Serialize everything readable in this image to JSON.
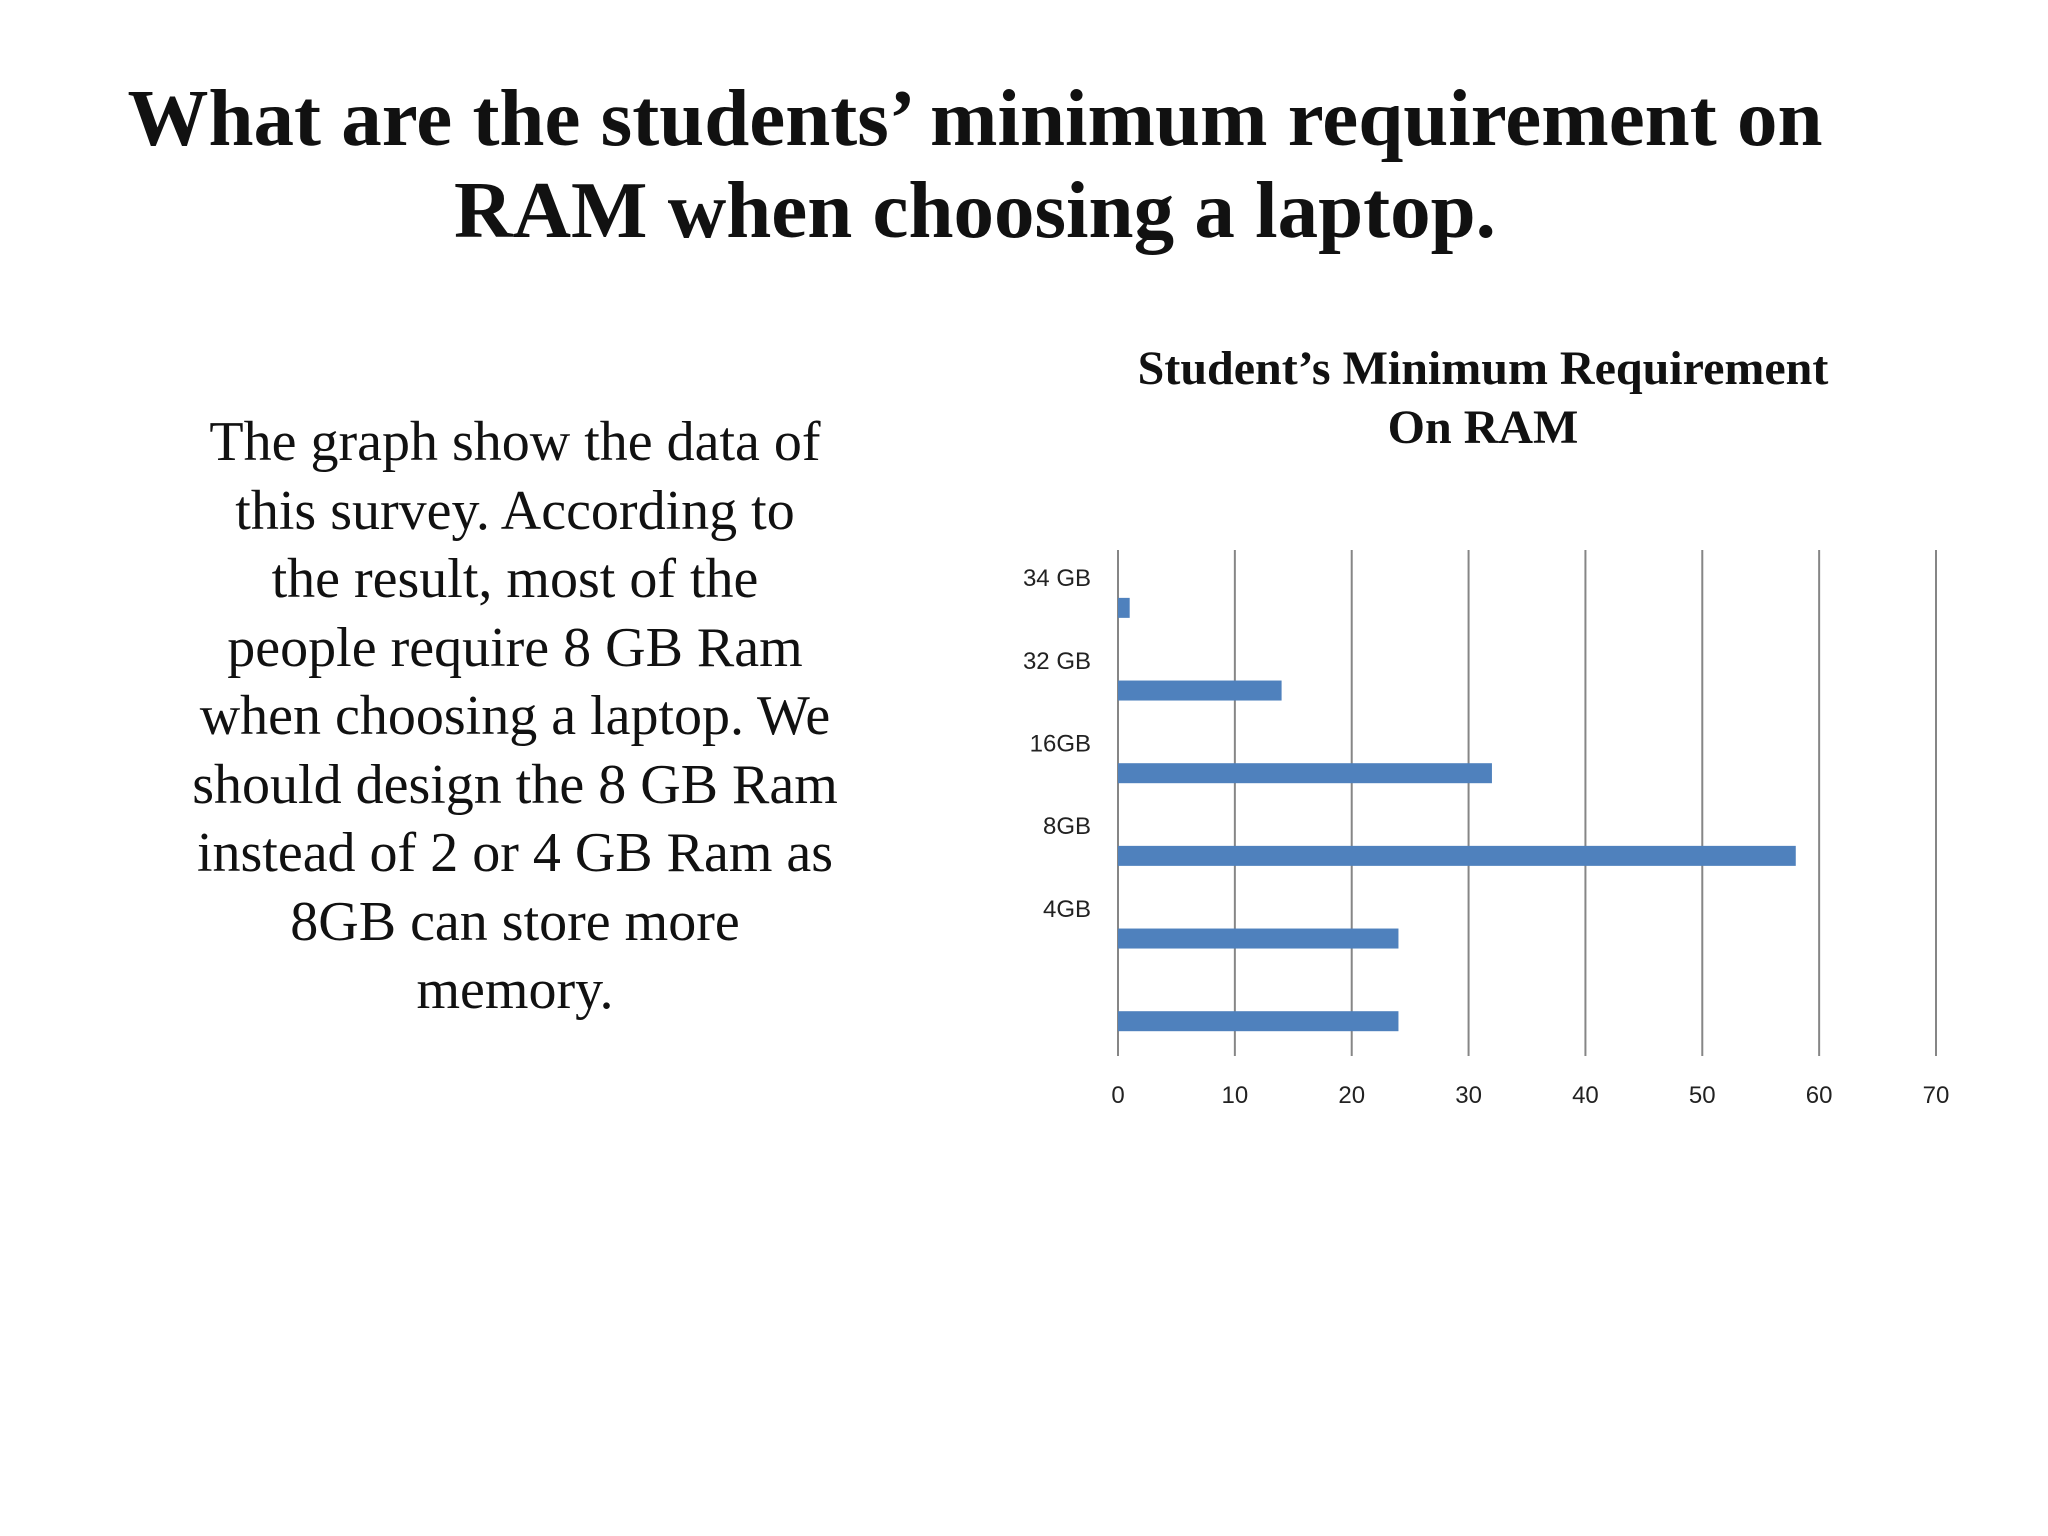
{
  "slide": {
    "title_lines": [
      "What are the students’ minimum requirement on",
      "RAM when choosing a laptop."
    ],
    "body_lines": [
      "The graph show the data of",
      "this survey.  According to",
      "the result, most of the",
      "people require 8 GB Ram",
      "when choosing a laptop. We",
      "should design the 8 GB Ram",
      "instead of 2 or 4 GB Ram as",
      "8GB can store more",
      "memory."
    ]
  },
  "chart_data": {
    "type": "bar",
    "orientation": "horizontal",
    "title_lines": [
      "Student’s Minimum Requirement",
      "On RAM"
    ],
    "categories": [
      "34 GB",
      "32 GB",
      "16GB",
      "8GB",
      "4GB",
      ""
    ],
    "values": [
      1,
      14,
      32,
      58,
      24,
      24
    ],
    "xlim": [
      0,
      70
    ],
    "xticks": [
      0,
      10,
      20,
      30,
      40,
      50,
      60,
      70
    ],
    "grid": "vertical",
    "legend": "none",
    "bar_color": "#4f81bd",
    "grid_color": "#868686"
  }
}
